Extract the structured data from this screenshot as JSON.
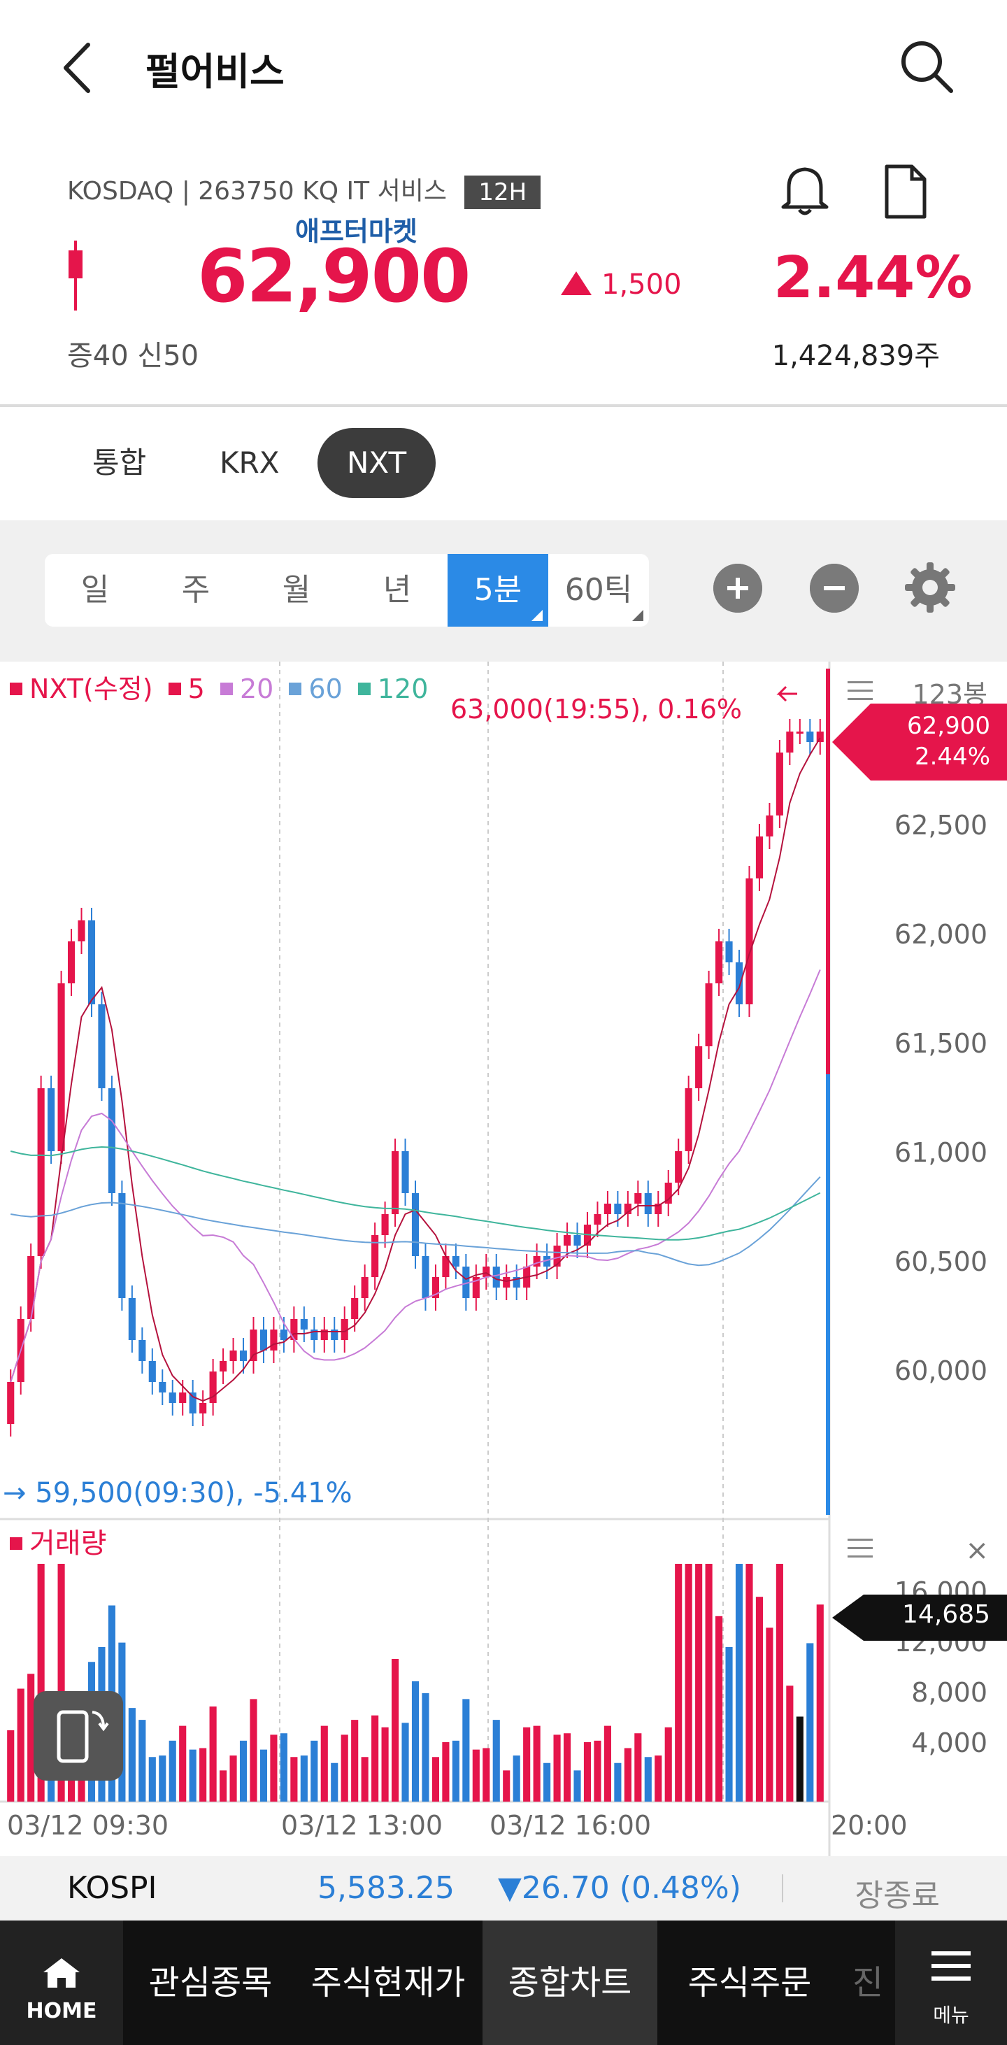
{
  "header": {
    "title": "펄어비스"
  },
  "stock": {
    "market": "KOSDAQ",
    "code_info": "263750 KQ IT 서비스",
    "session_badge": "12H",
    "aftermarket_label": "애프터마켓",
    "price": "62,900",
    "change": "1,500",
    "change_pct": "2.44%",
    "margin_info": "증40  신50",
    "volume": "1,424,839주"
  },
  "market_tabs": [
    "통합",
    "KRX",
    "NXT"
  ],
  "period_tabs": [
    "일",
    "주",
    "월",
    "년",
    "5분",
    "60틱"
  ],
  "chart_data": {
    "type": "candlestick",
    "legend": [
      {
        "name": "NXT(수정)",
        "color": "#e5154b"
      },
      {
        "name": "5",
        "color": "#e5154b"
      },
      {
        "name": "20",
        "color": "#c77bd6"
      },
      {
        "name": "60",
        "color": "#6aa2d8"
      },
      {
        "name": "120",
        "color": "#3fb59c"
      }
    ],
    "unit_label": "123봉",
    "y_ticks": [
      "62,500",
      "62,000",
      "61,500",
      "61,000",
      "60,500",
      "60,000"
    ],
    "ylim": [
      59500,
      63000
    ],
    "x_labels": [
      "03/12 09:30",
      "03/12 13:00",
      "03/12 16:00",
      "20:00"
    ],
    "high_annotation": "63,000(19:55), 0.16%",
    "low_annotation": "→ 59,500(09:30), -5.41%",
    "current_badge": {
      "price": "62,900",
      "pct": "2.44%"
    },
    "volume_label": "거래량",
    "volume_ticks": [
      "16,000",
      "12,000",
      "8,000",
      "4,000"
    ],
    "volume_badge": "14,685",
    "close_path": [
      59800,
      60100,
      60400,
      61200,
      60900,
      61700,
      61900,
      62000,
      61600,
      61200,
      60700,
      60200,
      60000,
      59900,
      59800,
      59750,
      59700,
      59750,
      59650,
      59700,
      59850,
      59900,
      59950,
      59900,
      60050,
      59950,
      60050,
      60000,
      60100,
      60050,
      60000,
      60050,
      60000,
      60100,
      60200,
      60300,
      60500,
      60600,
      60900,
      60700,
      60400,
      60200,
      60300,
      60400,
      60350,
      60200,
      60300,
      60350,
      60250,
      60300,
      60250,
      60350,
      60400,
      60350,
      60450,
      60500,
      60450,
      60550,
      60600,
      60650,
      60600,
      60650,
      60700,
      60600,
      60650,
      60750,
      60900,
      61200,
      61400,
      61700,
      61900,
      61800,
      61600,
      62200,
      62400,
      62500,
      62800,
      62900,
      62900,
      62850,
      62900
    ]
  },
  "kospi": {
    "name": "KOSPI",
    "value": "5,583.25",
    "change": "▼26.70 (0.48%)",
    "status": "장종료"
  },
  "bottom_nav": {
    "home": "HOME",
    "items": [
      "관심종목",
      "주식현재가",
      "종합차트",
      "주식주문",
      "진"
    ],
    "menu": "메뉴"
  }
}
